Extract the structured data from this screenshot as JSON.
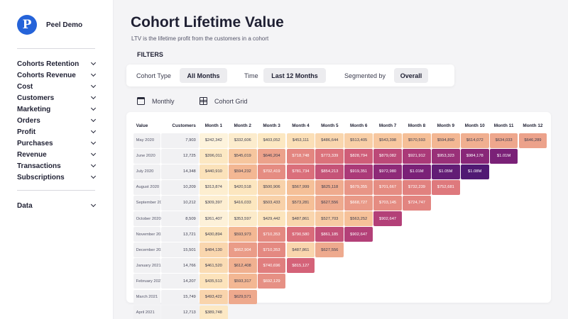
{
  "brand": {
    "name": "Peel Demo",
    "logo_letter": "P"
  },
  "sidebar": {
    "items": [
      {
        "label": "Cohorts Retention"
      },
      {
        "label": "Cohorts Revenue"
      },
      {
        "label": "Cost"
      },
      {
        "label": "Customers"
      },
      {
        "label": "Marketing"
      },
      {
        "label": "Orders"
      },
      {
        "label": "Profit"
      },
      {
        "label": "Purchases"
      },
      {
        "label": "Revenue"
      },
      {
        "label": "Transactions"
      },
      {
        "label": "Subscriptions"
      }
    ],
    "bottom": [
      {
        "label": "Data"
      }
    ]
  },
  "page": {
    "title": "Cohort Lifetime Value",
    "subtitle": "LTV is the lifetime profit from the customers in a cohort",
    "filters_label": "FILTERS"
  },
  "filters": {
    "cohort_type_label": "Cohort Type",
    "cohort_type_value": "All Months",
    "time_label": "Time",
    "time_value": "Last 12 Months",
    "segment_label": "Segmented by",
    "segment_value": "Overall"
  },
  "view": {
    "period_label": "Monthly",
    "grid_label": "Cohort Grid"
  },
  "table": {
    "headers": [
      "Value",
      "Customers",
      "Month 1",
      "Month 2",
      "Month 3",
      "Month 4",
      "Month 5",
      "Month 6",
      "Month 7",
      "Month 8",
      "Month 9",
      "Month 10",
      "Month 11",
      "Month 12"
    ],
    "rows": [
      {
        "cohort": "May 2020",
        "customers": "7,903",
        "values": [
          "$242,342",
          "$332,606",
          "$403,052",
          "$453,111",
          "$486,644",
          "$513,405",
          "$543,398",
          "$570,593",
          "$594,890",
          "$614,072",
          "$634,033",
          "$646,289"
        ]
      },
      {
        "cohort": "June 2020",
        "customers": "12,725",
        "values": [
          "$396,011",
          "$545,019",
          "$646,204",
          "$718,748",
          "$773,339",
          "$828,794",
          "$879,082",
          "$921,912",
          "$953,323",
          "$984,178",
          "$1.01M"
        ]
      },
      {
        "cohort": "July 2020",
        "customers": "14,348",
        "values": [
          "$440,910",
          "$594,232",
          "$702,419",
          "$781,734",
          "$854,213",
          "$919,351",
          "$972,980",
          "$1.01M",
          "$1.05M",
          "$1.08M"
        ]
      },
      {
        "cohort": "August 2020",
        "customers": "10,209",
        "values": [
          "$313,874",
          "$420,518",
          "$500,906",
          "$567,999",
          "$625,118",
          "$679,355",
          "$701,667",
          "$732,239",
          "$752,681"
        ]
      },
      {
        "cohort": "September 2020",
        "customers": "10,212",
        "values": [
          "$309,397",
          "$416,033",
          "$503,433",
          "$573,281",
          "$627,556",
          "$668,727",
          "$703,145",
          "$724,747"
        ]
      },
      {
        "cohort": "October 2020",
        "customers": "8,509",
        "values": [
          "$261,407",
          "$353,597",
          "$429,442",
          "$487,861",
          "$527,703",
          "$563,252",
          "$902,647"
        ]
      },
      {
        "cohort": "November 2020",
        "customers": "13,721",
        "values": [
          "$430,894",
          "$593,973",
          "$710,353",
          "$790,580",
          "$861,185",
          "$902,647"
        ]
      },
      {
        "cohort": "December 2020",
        "customers": "15,501",
        "values": [
          "$484,130",
          "$662,904",
          "$710,353",
          "$487,861",
          "$627,556"
        ]
      },
      {
        "cohort": "January 2021",
        "customers": "14,766",
        "values": [
          "$461,520",
          "$612,408",
          "$740,696",
          "$815,127"
        ]
      },
      {
        "cohort": "February 2021",
        "customers": "14,207",
        "values": [
          "$435,513",
          "$593,317",
          "$692,129"
        ]
      },
      {
        "cohort": "March 2021",
        "customers": "15,749",
        "values": [
          "$493,422",
          "$629,571"
        ]
      },
      {
        "cohort": "April 2021",
        "customers": "12,713",
        "values": [
          "$389,748"
        ]
      }
    ]
  },
  "colors": {
    "brand": "#2563d9",
    "heat_low": "#fdf3dc",
    "heat_high": "#4e1a77"
  }
}
